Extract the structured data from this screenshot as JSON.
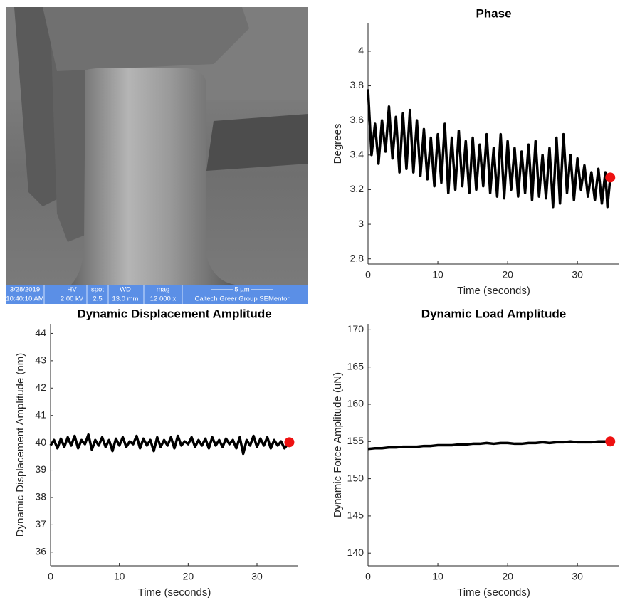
{
  "sem_image": {
    "info_bar": {
      "date": "3/28/2019",
      "time": "10:40:10 AM",
      "hv_label": "HV",
      "hv": "2.00 kV",
      "spot_label": "spot",
      "spot": "2.5",
      "wd_label": "WD",
      "wd": "13.0 mm",
      "mag_label": "mag",
      "mag": "12 000 x",
      "scale": "5 µm",
      "lab": "Caltech Greer Group SEMentor"
    }
  },
  "chart_data": [
    {
      "type": "line",
      "title": "Phase",
      "x_label": "Time (seconds)",
      "y_label": "Degrees",
      "x": [
        0,
        0.5,
        1,
        1.5,
        2,
        2.5,
        3,
        3.5,
        4,
        4.5,
        5,
        5.5,
        6,
        6.5,
        7,
        7.5,
        8,
        8.5,
        9,
        9.5,
        10,
        10.5,
        11,
        11.5,
        12,
        12.5,
        13,
        13.5,
        14,
        14.5,
        15,
        15.5,
        16,
        16.5,
        17,
        17.5,
        18,
        18.5,
        19,
        19.5,
        20,
        20.5,
        21,
        21.5,
        22,
        22.5,
        23,
        23.5,
        24,
        24.5,
        25,
        25.5,
        26,
        26.5,
        27,
        27.5,
        28,
        28.5,
        29,
        29.5,
        30,
        30.5,
        31,
        31.5,
        32,
        32.5,
        33,
        33.5,
        34,
        34.3,
        34.7
      ],
      "values": [
        3.78,
        3.4,
        3.58,
        3.35,
        3.6,
        3.42,
        3.68,
        3.38,
        3.62,
        3.3,
        3.64,
        3.32,
        3.66,
        3.3,
        3.6,
        3.28,
        3.55,
        3.26,
        3.5,
        3.22,
        3.52,
        3.24,
        3.58,
        3.18,
        3.5,
        3.2,
        3.54,
        3.22,
        3.48,
        3.18,
        3.5,
        3.2,
        3.46,
        3.22,
        3.52,
        3.18,
        3.44,
        3.16,
        3.52,
        3.15,
        3.48,
        3.2,
        3.44,
        3.16,
        3.42,
        3.18,
        3.46,
        3.14,
        3.48,
        3.16,
        3.4,
        3.15,
        3.44,
        3.1,
        3.5,
        3.12,
        3.52,
        3.18,
        3.4,
        3.14,
        3.38,
        3.2,
        3.34,
        3.16,
        3.3,
        3.14,
        3.32,
        3.12,
        3.3,
        3.1,
        3.27
      ],
      "color": "#000000",
      "end_marker_color": "#ee1111",
      "xlim": [
        0,
        36
      ],
      "xticks": [
        0,
        10,
        20,
        30
      ],
      "ylim": [
        2.77,
        4.16
      ],
      "yticks": [
        2.8,
        3,
        3.2,
        3.4,
        3.6,
        3.8,
        4
      ]
    },
    {
      "type": "line",
      "title": "Dynamic Displacement Amplitude",
      "x_label": "Time (seconds)",
      "y_label": "Dynamic Displacement Amplitude (nm)",
      "x": [
        0,
        0.5,
        1,
        1.5,
        2,
        2.5,
        3,
        3.5,
        4,
        4.5,
        5,
        5.5,
        6,
        6.5,
        7,
        7.5,
        8,
        8.5,
        9,
        9.5,
        10,
        10.5,
        11,
        11.5,
        12,
        12.5,
        13,
        13.5,
        14,
        14.5,
        15,
        15.5,
        16,
        16.5,
        17,
        17.5,
        18,
        18.5,
        19,
        19.5,
        20,
        20.5,
        21,
        21.5,
        22,
        22.5,
        23,
        23.5,
        24,
        24.5,
        25,
        25.5,
        26,
        26.5,
        27,
        27.5,
        28,
        28.5,
        29,
        29.5,
        30,
        30.5,
        31,
        31.5,
        32,
        32.5,
        33,
        33.5,
        34,
        34.7
      ],
      "values": [
        39.9,
        40.1,
        39.8,
        40.15,
        39.85,
        40.2,
        39.9,
        40.25,
        39.8,
        40.1,
        39.95,
        40.3,
        39.75,
        40.1,
        39.9,
        40.2,
        39.85,
        40.1,
        39.7,
        40.15,
        39.9,
        40.2,
        39.85,
        40.05,
        39.95,
        40.25,
        39.8,
        40.15,
        39.9,
        40.1,
        39.7,
        40.2,
        39.85,
        40.1,
        39.9,
        40.2,
        39.8,
        40.25,
        39.9,
        40.05,
        39.95,
        40.2,
        39.85,
        40.1,
        39.9,
        40.15,
        39.8,
        40.2,
        39.9,
        40.1,
        39.85,
        40.15,
        39.95,
        40.1,
        39.8,
        40.2,
        39.6,
        40.1,
        39.9,
        40.25,
        39.85,
        40.15,
        39.9,
        40.2,
        39.8,
        40.1,
        39.9,
        40.05,
        39.8,
        40.02
      ],
      "color": "#000000",
      "end_marker_color": "#ee1111",
      "xlim": [
        0,
        36
      ],
      "xticks": [
        0,
        10,
        20,
        30
      ],
      "ylim": [
        35.5,
        44.35
      ],
      "yticks": [
        36,
        37,
        38,
        39,
        40,
        41,
        42,
        43,
        44
      ]
    },
    {
      "type": "line",
      "title": "Dynamic Load Amplitude",
      "x_label": "Time (seconds)",
      "y_label": "Dynamic Force Amplitude (uN)",
      "x": [
        0,
        1,
        2,
        3,
        4,
        5,
        6,
        7,
        8,
        9,
        10,
        11,
        12,
        13,
        14,
        15,
        16,
        17,
        18,
        19,
        20,
        21,
        22,
        23,
        24,
        25,
        26,
        27,
        28,
        29,
        30,
        31,
        32,
        33,
        34,
        34.7
      ],
      "values": [
        154.0,
        154.1,
        154.1,
        154.2,
        154.2,
        154.3,
        154.3,
        154.3,
        154.4,
        154.4,
        154.5,
        154.5,
        154.5,
        154.6,
        154.6,
        154.7,
        154.7,
        154.8,
        154.7,
        154.8,
        154.8,
        154.7,
        154.7,
        154.8,
        154.8,
        154.9,
        154.8,
        154.9,
        154.9,
        155.0,
        154.9,
        154.9,
        154.9,
        155.0,
        155.0,
        155.0
      ],
      "color": "#000000",
      "end_marker_color": "#ee1111",
      "xlim": [
        0,
        36
      ],
      "xticks": [
        0,
        10,
        20,
        30
      ],
      "ylim": [
        138.3,
        170.8
      ],
      "yticks": [
        140,
        145,
        150,
        155,
        160,
        165,
        170
      ]
    }
  ]
}
